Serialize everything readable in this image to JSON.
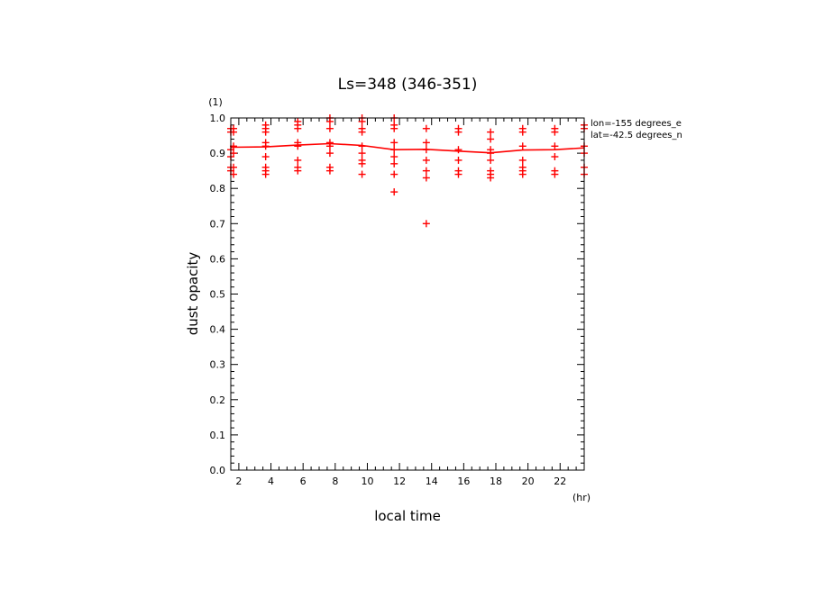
{
  "chart_data": {
    "type": "scatter",
    "title": "Ls=348 (346-351)",
    "xlabel": "local time",
    "xunit": "(hr)",
    "ylabel": "dust opacity",
    "yunit": "(1)",
    "xlim": [
      1.5,
      23.5
    ],
    "ylim": [
      0.0,
      1.0
    ],
    "x_ticks": [
      2,
      4,
      6,
      8,
      10,
      12,
      14,
      16,
      18,
      20,
      22
    ],
    "y_ticks": [
      "0.0",
      "0.1",
      "0.2",
      "0.3",
      "0.4",
      "0.5",
      "0.6",
      "0.7",
      "0.8",
      "0.9",
      "1.0"
    ],
    "annotations": [
      "lon=-155 degrees_e",
      "lat=-42.5 degrees_n"
    ],
    "color": "#ff0000",
    "points": [
      [
        1.5,
        0.96
      ],
      [
        1.5,
        0.97
      ],
      [
        1.5,
        0.91
      ],
      [
        1.5,
        0.89
      ],
      [
        1.5,
        0.86
      ],
      [
        1.5,
        0.85
      ],
      [
        1.67,
        0.97
      ],
      [
        1.67,
        0.96
      ],
      [
        1.67,
        0.92
      ],
      [
        1.67,
        0.9
      ],
      [
        1.67,
        0.86
      ],
      [
        1.67,
        0.84
      ],
      [
        3.67,
        0.98
      ],
      [
        3.67,
        0.97
      ],
      [
        3.67,
        0.96
      ],
      [
        3.67,
        0.93
      ],
      [
        3.67,
        0.92
      ],
      [
        3.67,
        0.89
      ],
      [
        3.67,
        0.86
      ],
      [
        3.67,
        0.85
      ],
      [
        3.67,
        0.84
      ],
      [
        5.67,
        0.99
      ],
      [
        5.67,
        0.98
      ],
      [
        5.67,
        0.97
      ],
      [
        5.67,
        0.93
      ],
      [
        5.67,
        0.92
      ],
      [
        5.67,
        0.88
      ],
      [
        5.67,
        0.86
      ],
      [
        5.67,
        0.85
      ],
      [
        7.67,
        1.0
      ],
      [
        7.67,
        0.99
      ],
      [
        7.67,
        0.97
      ],
      [
        7.67,
        0.93
      ],
      [
        7.67,
        0.92
      ],
      [
        7.67,
        0.9
      ],
      [
        7.67,
        0.86
      ],
      [
        7.67,
        0.85
      ],
      [
        9.67,
        1.0
      ],
      [
        9.67,
        0.99
      ],
      [
        9.67,
        0.97
      ],
      [
        9.67,
        0.96
      ],
      [
        9.67,
        0.92
      ],
      [
        9.67,
        0.9
      ],
      [
        9.67,
        0.88
      ],
      [
        9.67,
        0.87
      ],
      [
        9.67,
        0.84
      ],
      [
        11.67,
        1.0
      ],
      [
        11.67,
        0.98
      ],
      [
        11.67,
        0.97
      ],
      [
        11.67,
        0.93
      ],
      [
        11.67,
        0.91
      ],
      [
        11.67,
        0.89
      ],
      [
        11.67,
        0.87
      ],
      [
        11.67,
        0.84
      ],
      [
        11.67,
        0.79
      ],
      [
        13.67,
        0.97
      ],
      [
        13.67,
        0.93
      ],
      [
        13.67,
        0.91
      ],
      [
        13.67,
        0.88
      ],
      [
        13.67,
        0.85
      ],
      [
        13.67,
        0.83
      ],
      [
        13.67,
        0.7
      ],
      [
        15.67,
        0.97
      ],
      [
        15.67,
        0.96
      ],
      [
        15.67,
        0.91
      ],
      [
        15.67,
        0.88
      ],
      [
        15.67,
        0.85
      ],
      [
        15.67,
        0.84
      ],
      [
        17.67,
        0.96
      ],
      [
        17.67,
        0.94
      ],
      [
        17.67,
        0.91
      ],
      [
        17.67,
        0.9
      ],
      [
        17.67,
        0.88
      ],
      [
        17.67,
        0.85
      ],
      [
        17.67,
        0.84
      ],
      [
        17.67,
        0.83
      ],
      [
        19.67,
        0.97
      ],
      [
        19.67,
        0.96
      ],
      [
        19.67,
        0.92
      ],
      [
        19.67,
        0.88
      ],
      [
        19.67,
        0.86
      ],
      [
        19.67,
        0.85
      ],
      [
        19.67,
        0.84
      ],
      [
        21.67,
        0.97
      ],
      [
        21.67,
        0.96
      ],
      [
        21.67,
        0.92
      ],
      [
        21.67,
        0.89
      ],
      [
        21.67,
        0.85
      ],
      [
        21.67,
        0.84
      ],
      [
        23.5,
        0.98
      ],
      [
        23.5,
        0.97
      ],
      [
        23.5,
        0.92
      ],
      [
        23.5,
        0.9
      ],
      [
        23.5,
        0.86
      ],
      [
        23.5,
        0.84
      ]
    ],
    "mean_line": {
      "x": [
        1.5,
        3.67,
        5.67,
        7.67,
        9.67,
        11.67,
        13.67,
        15.67,
        17.67,
        19.67,
        21.67,
        23.5
      ],
      "y": [
        0.917,
        0.918,
        0.923,
        0.927,
        0.922,
        0.91,
        0.911,
        0.906,
        0.901,
        0.909,
        0.91,
        0.915
      ]
    }
  }
}
